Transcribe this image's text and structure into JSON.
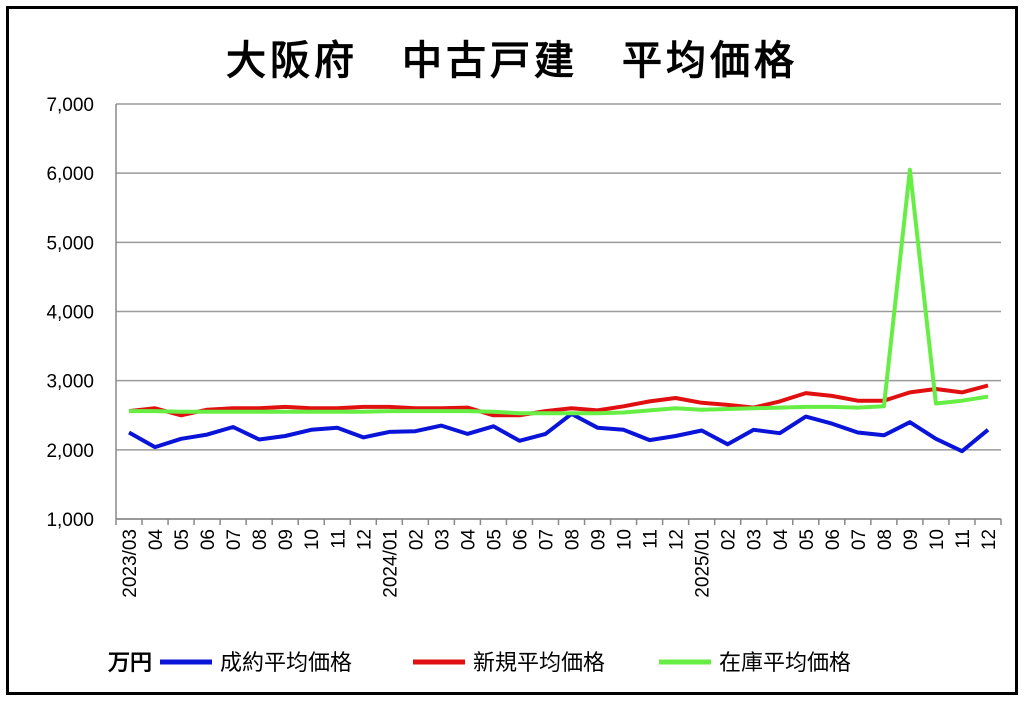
{
  "title": "大阪府　中古戸建　平均価格",
  "chart_data": {
    "type": "line",
    "title": "大阪府　中古戸建　平均価格",
    "unit_label": "万円",
    "ylim": [
      1000,
      7000
    ],
    "yticks": [
      "1,000",
      "2,000",
      "3,000",
      "4,000",
      "5,000",
      "6,000",
      "7,000"
    ],
    "grid": true,
    "legend_position": "bottom",
    "categories": [
      "2023/03",
      "04",
      "05",
      "06",
      "07",
      "08",
      "09",
      "10",
      "11",
      "12",
      "2024/01",
      "02",
      "03",
      "04",
      "05",
      "06",
      "07",
      "08",
      "09",
      "10",
      "11",
      "12",
      "2025/01",
      "02",
      "03",
      "04",
      "05",
      "06",
      "07",
      "08",
      "09",
      "10",
      "11",
      "12"
    ],
    "series": [
      {
        "name": "成約平均価格",
        "color": "#0a14d8",
        "values": [
          2250,
          2040,
          2160,
          2220,
          2330,
          2150,
          2200,
          2290,
          2320,
          2180,
          2260,
          2270,
          2350,
          2230,
          2340,
          2130,
          2230,
          2520,
          2320,
          2290,
          2140,
          2200,
          2280,
          2080,
          2290,
          2240,
          2480,
          2380,
          2250,
          2210,
          2400,
          2160,
          1980,
          2290
        ]
      },
      {
        "name": "新規平均価格",
        "color": "#e01010",
        "values": [
          2560,
          2600,
          2500,
          2580,
          2600,
          2600,
          2620,
          2600,
          2600,
          2620,
          2620,
          2600,
          2600,
          2610,
          2500,
          2500,
          2560,
          2600,
          2570,
          2630,
          2700,
          2750,
          2680,
          2650,
          2610,
          2700,
          2820,
          2780,
          2710,
          2710,
          2830,
          2880,
          2830,
          2930
        ]
      },
      {
        "name": "在庫平均価格",
        "color": "#66ee44",
        "values": [
          2560,
          2560,
          2550,
          2550,
          2550,
          2550,
          2550,
          2550,
          2550,
          2550,
          2560,
          2560,
          2560,
          2560,
          2550,
          2530,
          2530,
          2530,
          2530,
          2540,
          2570,
          2600,
          2580,
          2590,
          2600,
          2610,
          2620,
          2620,
          2610,
          2630,
          6050,
          2670,
          2710,
          2770
        ]
      }
    ]
  }
}
